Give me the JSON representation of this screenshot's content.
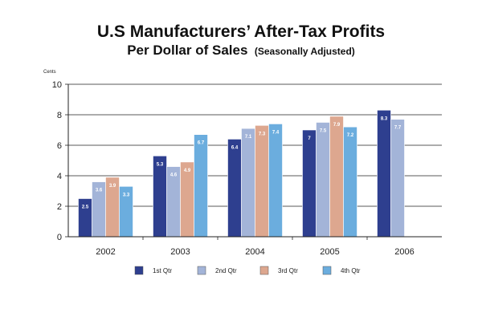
{
  "chart_data": {
    "type": "bar",
    "title": "U.S Manufacturers’ After-Tax Profits",
    "subtitle_main": "Per Dollar of Sales",
    "subtitle_note": "(Seasonally Adjusted)",
    "ylabel": "Cents",
    "xlabel": "",
    "ylim": [
      0,
      10
    ],
    "yticks": [
      0,
      2,
      4,
      6,
      8,
      10
    ],
    "grid": true,
    "legend_position": "bottom",
    "categories": [
      "2002",
      "2003",
      "2004",
      "2005",
      "2006"
    ],
    "series": [
      {
        "name": "1st Qtr",
        "color": "#2e3f8f",
        "values": [
          2.5,
          5.3,
          6.4,
          7,
          8.3
        ],
        "labels": [
          "2.5",
          "5.3",
          "6.4",
          "7",
          "8.3"
        ]
      },
      {
        "name": "2nd Qtr",
        "color": "#a3b4d8",
        "values": [
          3.6,
          4.6,
          7.1,
          7.5,
          7.7
        ],
        "labels": [
          "3.6",
          "4.6",
          "7.1",
          "7.5",
          "7.7"
        ]
      },
      {
        "name": "3rd Qtr",
        "color": "#dda78f",
        "values": [
          3.9,
          4.9,
          7.3,
          7.9,
          null
        ],
        "labels": [
          "3.9",
          "4.9",
          "7.3",
          "7.9",
          null
        ]
      },
      {
        "name": "4th Qtr",
        "color": "#6badde",
        "values": [
          3.3,
          6.7,
          7.4,
          7.2,
          null
        ],
        "labels": [
          "3.3",
          "6.7",
          "7.4",
          "7.2",
          null
        ]
      }
    ]
  }
}
